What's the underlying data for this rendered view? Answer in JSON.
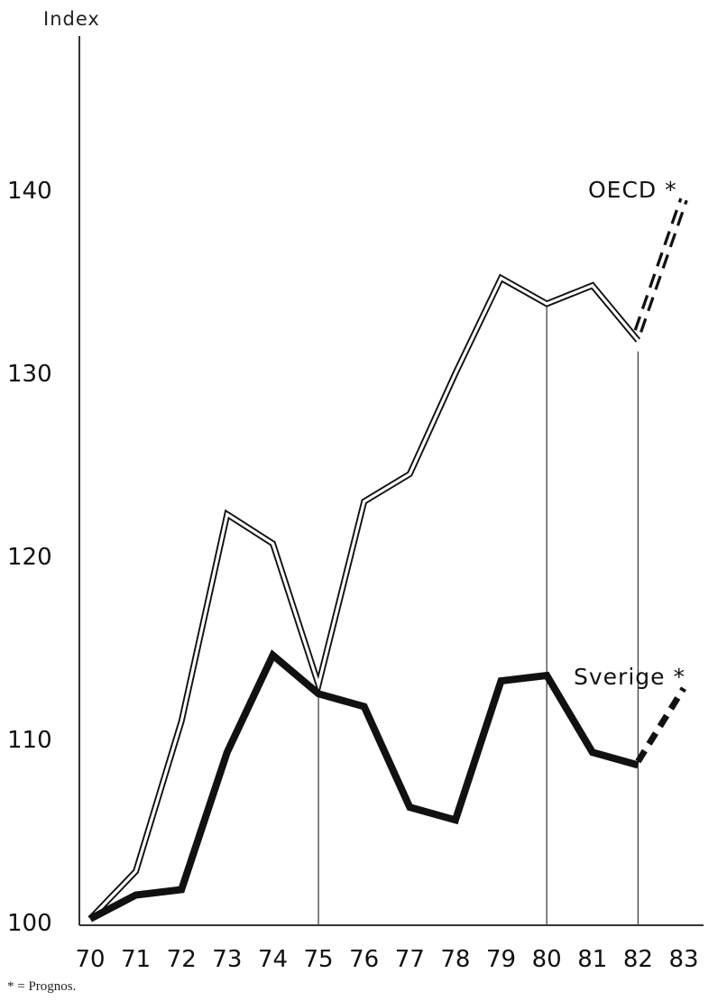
{
  "chart_data": {
    "type": "line",
    "ylabel": "Index",
    "ylim": [
      100,
      145
    ],
    "yticks": [
      100,
      110,
      120,
      130,
      140
    ],
    "x_tick_labels": [
      "70",
      "71",
      "72",
      "73",
      "74",
      "75",
      "76",
      "77",
      "78",
      "79",
      "80",
      "81",
      "82",
      "83"
    ],
    "series": [
      {
        "name": "OECD *",
        "style": "double-outline",
        "color": "#111111",
        "x": [
          1970,
          1971,
          1972,
          1973,
          1974,
          1975,
          1976,
          1977,
          1978,
          1979,
          1980,
          1981,
          1982
        ],
        "values": [
          100.2,
          102.8,
          111.0,
          122.3,
          120.7,
          113.0,
          123.0,
          124.5,
          130.0,
          135.2,
          133.8,
          134.8,
          131.8
        ],
        "forecast": {
          "x": [
            1982,
            1983
          ],
          "values": [
            132.3,
            139.5
          ]
        }
      },
      {
        "name": "Sverige *",
        "style": "solid-bold",
        "color": "#111111",
        "x": [
          1970,
          1971,
          1972,
          1973,
          1974,
          1975,
          1976,
          1977,
          1978,
          1979,
          1980,
          1981,
          1982
        ],
        "values": [
          100.2,
          101.5,
          101.8,
          109.3,
          114.6,
          112.5,
          111.8,
          106.3,
          105.6,
          113.2,
          113.5,
          109.3,
          108.6
        ],
        "forecast": {
          "x": [
            1982,
            1983
          ],
          "values": [
            108.8,
            112.8
          ]
        }
      }
    ],
    "vertical_lines_at": [
      1975,
      1980,
      1982
    ],
    "grid": false,
    "legend": "direct labels"
  },
  "footnote": "* = Prognos."
}
